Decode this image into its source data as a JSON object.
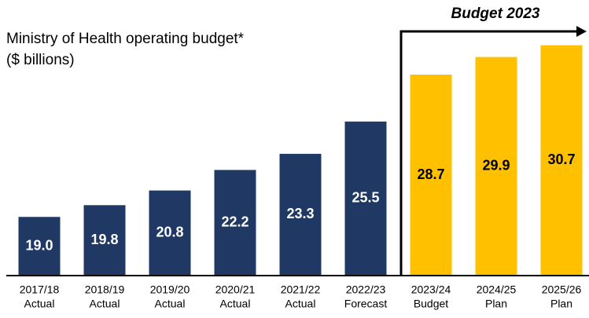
{
  "chart_data": {
    "type": "bar",
    "title": "Ministry of Health operating budget*",
    "subtitle": "($ billions)",
    "annotation": "Budget  2023",
    "categories": [
      [
        "2017/18",
        "Actual"
      ],
      [
        "2018/19",
        "Actual"
      ],
      [
        "2019/20",
        "Actual"
      ],
      [
        "2020/21",
        "Actual"
      ],
      [
        "2021/22",
        "Actual"
      ],
      [
        "2022/23",
        "Forecast"
      ],
      [
        "2023/24",
        "Budget"
      ],
      [
        "2024/25",
        "Plan"
      ],
      [
        "2025/26",
        "Plan"
      ]
    ],
    "values": [
      19.0,
      19.8,
      20.8,
      22.2,
      23.3,
      25.5,
      28.7,
      29.9,
      30.7
    ],
    "value_labels": [
      "19.0",
      "19.8",
      "20.8",
      "22.2",
      "23.3",
      "25.5",
      "28.7",
      "29.9",
      "30.7"
    ],
    "colors": [
      "#203864",
      "#203864",
      "#203864",
      "#203864",
      "#203864",
      "#203864",
      "#ffc000",
      "#ffc000",
      "#ffc000"
    ],
    "ylim": [
      15,
      32.5
    ]
  }
}
